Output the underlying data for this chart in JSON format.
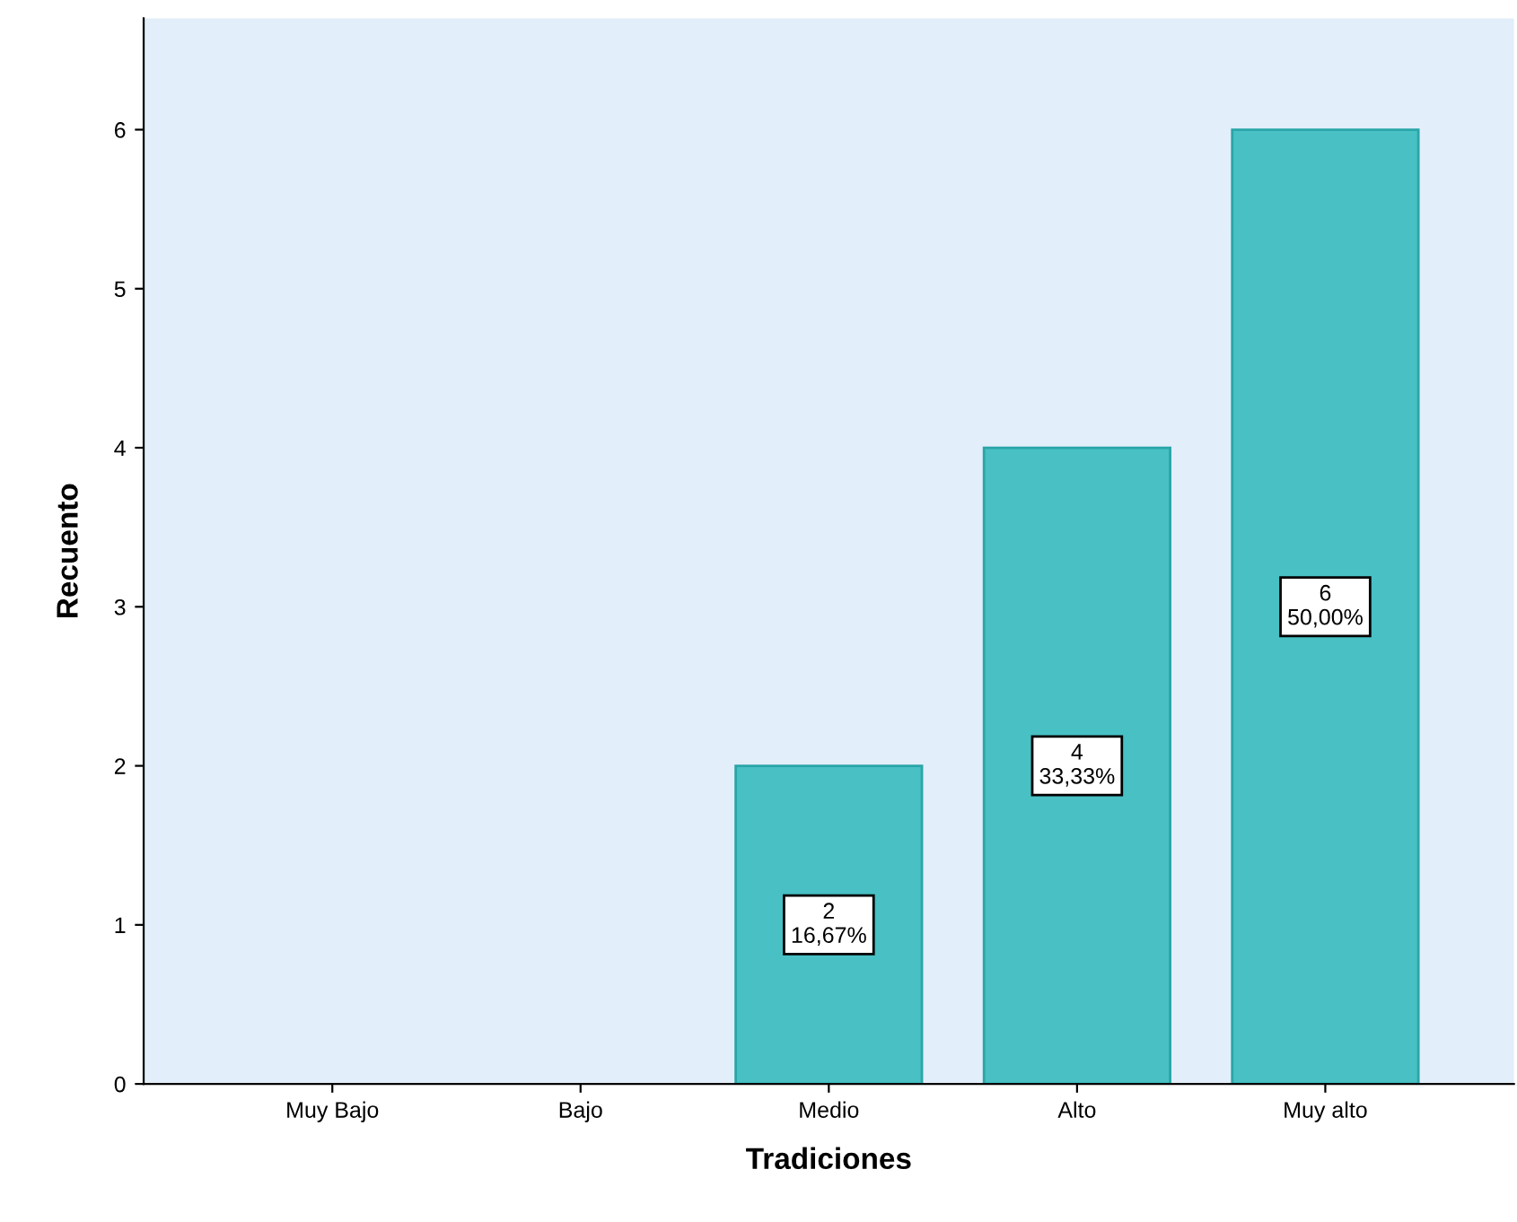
{
  "chart_data": {
    "type": "bar",
    "xlabel": "Tradiciones",
    "ylabel": "Recuento",
    "categories": [
      "Muy Bajo",
      "Bajo",
      "Medio",
      "Alto",
      "Muy alto"
    ],
    "values": [
      0,
      0,
      2,
      4,
      6
    ],
    "value_labels": [
      null,
      null,
      "2\n16,67%",
      "4\n33,33%",
      "6\n50,00%"
    ],
    "color": "#48c0c4",
    "ylim": [
      0,
      6.7
    ],
    "yticks": [
      0,
      1,
      2,
      3,
      4,
      5,
      6
    ],
    "grid": false,
    "legend": false
  }
}
